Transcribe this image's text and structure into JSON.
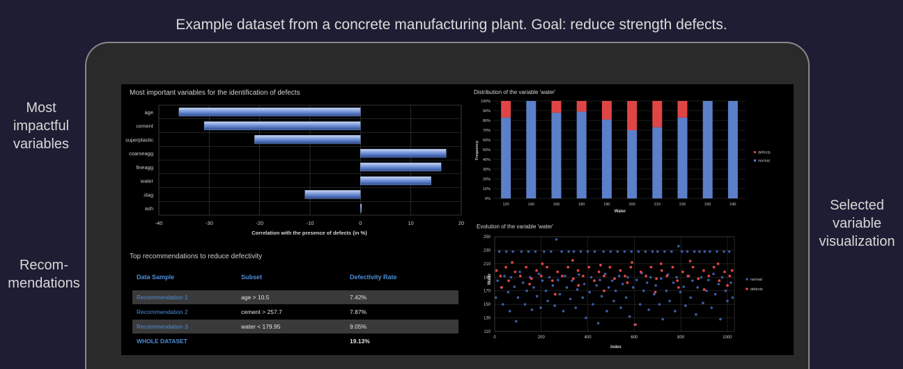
{
  "caption": "Example dataset from a concrete manufacturing plant. Goal: reduce strength defects.",
  "side_labels": {
    "left_top": [
      "Most",
      "impactful",
      "variables"
    ],
    "left_bottom": [
      "Recom-",
      "mendations"
    ],
    "right": [
      "Selected",
      "variable",
      "visualization"
    ]
  },
  "colors": {
    "bar_blue": "#5b7fc8",
    "defects_red": "#e04545",
    "normal_blue": "#3b5ca8",
    "link_blue": "#4d8ed8"
  },
  "recommendations": {
    "title": "Top recommendations to reduce defectivity",
    "headers": [
      "Data Sample",
      "Subset",
      "Defectivity Rate"
    ],
    "rows": [
      {
        "sample": "Recommendation 1",
        "subset": "age > 10.5",
        "rate": "7.42%"
      },
      {
        "sample": "Recommendation 2",
        "subset": "cement > 257.7",
        "rate": "7.87%"
      },
      {
        "sample": "Recommendation 3",
        "subset": "water <  179.95",
        "rate": "9.05%"
      }
    ],
    "total": {
      "sample": "WHOLE DATASET",
      "subset": "",
      "rate": "19.13%"
    }
  },
  "chart_data": [
    {
      "type": "bar",
      "orientation": "horizontal",
      "title": "Most important variables for the identification of defects",
      "xlabel": "Correlation with the presence of defects (in %)",
      "ylabel": "",
      "categories": [
        "age",
        "cement",
        "superplastic",
        "coarseagg",
        "fineagg",
        "water",
        "slag",
        "ash"
      ],
      "values": [
        -36,
        -31,
        -21,
        17,
        16,
        14,
        -11,
        0
      ],
      "xlim": [
        -40,
        20
      ],
      "xticks": [
        -40,
        -30,
        -20,
        -10,
        0,
        10,
        20
      ],
      "grid": true
    },
    {
      "type": "bar",
      "stacked": true,
      "title": "Distribution of the variable 'water'",
      "xlabel": "Water",
      "ylabel": "Frequency",
      "categories": [
        "120",
        "140",
        "160",
        "180",
        "190",
        "200",
        "210",
        "220",
        "230",
        "240"
      ],
      "series": [
        {
          "name": "normal",
          "values": [
            83,
            100,
            88,
            89,
            81,
            70,
            73,
            83,
            100,
            100
          ]
        },
        {
          "name": "defects",
          "values": [
            17,
            0,
            12,
            11,
            19,
            30,
            27,
            17,
            0,
            0
          ]
        }
      ],
      "ylim": [
        0,
        100
      ],
      "yticks": [
        "0%",
        "10%",
        "20%",
        "30%",
        "40%",
        "50%",
        "60%",
        "70%",
        "80%",
        "90%",
        "100%"
      ],
      "legend": "right"
    },
    {
      "type": "scatter",
      "title": "Evolution of the variable 'water'",
      "xlabel": "Index",
      "ylabel": "Water",
      "xlim": [
        0,
        1030
      ],
      "ylim": [
        110,
        250
      ],
      "xticks": [
        0,
        200,
        400,
        600,
        800,
        1000
      ],
      "yticks": [
        110,
        130,
        150,
        170,
        190,
        210,
        230,
        250
      ],
      "series": [
        {
          "name": "normal",
          "points": [
            [
              5,
              160
            ],
            [
              12,
              185
            ],
            [
              20,
              228
            ],
            [
              28,
              175
            ],
            [
              35,
              150
            ],
            [
              42,
              192
            ],
            [
              50,
              228
            ],
            [
              58,
              168
            ],
            [
              65,
              140
            ],
            [
              70,
              190
            ],
            [
              78,
              228
            ],
            [
              85,
              176
            ],
            [
              92,
              125
            ],
            [
              100,
              160
            ],
            [
              108,
              198
            ],
            [
              115,
              228
            ],
            [
              122,
              182
            ],
            [
              130,
              150
            ],
            [
              138,
              170
            ],
            [
              145,
              228
            ],
            [
              152,
              190
            ],
            [
              160,
              142
            ],
            [
              168,
              175
            ],
            [
              175,
              228
            ],
            [
              182,
              162
            ],
            [
              190,
              195
            ],
            [
              198,
              145
            ],
            [
              205,
              185
            ],
            [
              212,
              228
            ],
            [
              220,
              170
            ],
            [
              228,
              155
            ],
            [
              235,
              190
            ],
            [
              242,
              228
            ],
            [
              250,
              178
            ],
            [
              258,
              148
            ],
            [
              265,
              246
            ],
            [
              272,
              186
            ],
            [
              280,
              165
            ],
            [
              288,
              228
            ],
            [
              295,
              140
            ],
            [
              302,
              192
            ],
            [
              310,
              175
            ],
            [
              318,
              228
            ],
            [
              325,
              158
            ],
            [
              332,
              185
            ],
            [
              340,
              228
            ],
            [
              348,
              145
            ],
            [
              355,
              172
            ],
            [
              362,
              194
            ],
            [
              370,
              228
            ],
            [
              378,
              160
            ],
            [
              385,
              180
            ],
            [
              392,
              130
            ],
            [
              400,
              228
            ],
            [
              408,
              168
            ],
            [
              415,
              190
            ],
            [
              422,
              150
            ],
            [
              430,
              228
            ],
            [
              438,
              178
            ],
            [
              445,
              122
            ],
            [
              452,
              186
            ],
            [
              460,
              162
            ],
            [
              468,
              228
            ],
            [
              475,
              195
            ],
            [
              482,
              140
            ],
            [
              490,
              175
            ],
            [
              498,
              228
            ],
            [
              505,
              185
            ],
            [
              512,
              155
            ],
            [
              520,
              170
            ],
            [
              528,
              228
            ],
            [
              535,
              192
            ],
            [
              542,
              145
            ],
            [
              550,
              180
            ],
            [
              558,
              228
            ],
            [
              565,
              160
            ],
            [
              572,
              190
            ],
            [
              580,
              132
            ],
            [
              588,
              228
            ],
            [
              595,
              175
            ],
            [
              602,
              120
            ],
            [
              610,
              186
            ],
            [
              618,
              228
            ],
            [
              625,
              150
            ],
            [
              632,
              196
            ],
            [
              640,
              170
            ],
            [
              648,
              228
            ],
            [
              655,
              182
            ],
            [
              662,
              142
            ],
            [
              670,
              190
            ],
            [
              678,
              228
            ],
            [
              685,
              165
            ],
            [
              692,
              178
            ],
            [
              700,
              228
            ],
            [
              708,
              150
            ],
            [
              715,
              188
            ],
            [
              722,
              128
            ],
            [
              730,
              228
            ],
            [
              738,
              170
            ],
            [
              745,
              194
            ],
            [
              752,
              155
            ],
            [
              760,
              228
            ],
            [
              768,
              182
            ],
            [
              775,
              140
            ],
            [
              782,
              190
            ],
            [
              790,
              236
            ],
            [
              798,
              168
            ],
            [
              805,
              228
            ],
            [
              812,
              176
            ],
            [
              820,
              148
            ],
            [
              828,
              228
            ],
            [
              835,
              192
            ],
            [
              842,
              160
            ],
            [
              850,
              185
            ],
            [
              858,
              228
            ],
            [
              865,
              135
            ],
            [
              872,
              175
            ],
            [
              880,
              228
            ],
            [
              888,
              190
            ],
            [
              895,
              152
            ],
            [
              902,
              228
            ],
            [
              910,
              170
            ],
            [
              918,
              186
            ],
            [
              925,
              228
            ],
            [
              932,
              145
            ],
            [
              940,
              195
            ],
            [
              948,
              165
            ],
            [
              955,
              228
            ],
            [
              962,
              180
            ],
            [
              970,
              128
            ],
            [
              978,
              190
            ],
            [
              985,
              228
            ],
            [
              992,
              170
            ],
            [
              1000,
              155
            ],
            [
              1008,
              228
            ],
            [
              1015,
              182
            ],
            [
              1022,
              160
            ]
          ]
        },
        {
          "name": "defects",
          "points": [
            [
              8,
              200
            ],
            [
              25,
              192
            ],
            [
              48,
              205
            ],
            [
              60,
              185
            ],
            [
              88,
              198
            ],
            [
              110,
              192
            ],
            [
              135,
              205
            ],
            [
              158,
              188
            ],
            [
              180,
              200
            ],
            [
              200,
              192
            ],
            [
              225,
              205
            ],
            [
              248,
              185
            ],
            [
              270,
              198
            ],
            [
              290,
              192
            ],
            [
              315,
              205
            ],
            [
              338,
              188
            ],
            [
              358,
              200
            ],
            [
              380,
              192
            ],
            [
              405,
              205
            ],
            [
              428,
              185
            ],
            [
              448,
              198
            ],
            [
              470,
              192
            ],
            [
              495,
              205
            ],
            [
              515,
              188
            ],
            [
              540,
              200
            ],
            [
              560,
              192
            ],
            [
              585,
              205
            ],
            [
              605,
              120
            ],
            [
              628,
              198
            ],
            [
              650,
              192
            ],
            [
              672,
              205
            ],
            [
              695,
              188
            ],
            [
              718,
              200
            ],
            [
              740,
              192
            ],
            [
              765,
              205
            ],
            [
              785,
              185
            ],
            [
              808,
              198
            ],
            [
              830,
              192
            ],
            [
              852,
              205
            ],
            [
              875,
              188
            ],
            [
              898,
              200
            ],
            [
              920,
              192
            ],
            [
              942,
              205
            ],
            [
              965,
              185
            ],
            [
              988,
              198
            ],
            [
              1010,
              192
            ],
            [
              30,
              175
            ],
            [
              150,
              180
            ],
            [
              260,
              165
            ],
            [
              360,
              178
            ],
            [
              470,
              170
            ],
            [
              570,
              182
            ],
            [
              690,
              168
            ],
            [
              790,
              175
            ],
            [
              900,
              172
            ],
            [
              1000,
              178
            ],
            [
              75,
              212
            ],
            [
              205,
              210
            ],
            [
              335,
              215
            ],
            [
              455,
              208
            ],
            [
              590,
              212
            ],
            [
              715,
              210
            ],
            [
              840,
              214
            ],
            [
              960,
              210
            ],
            [
              1020,
              200
            ]
          ]
        }
      ],
      "legend": "right"
    }
  ]
}
